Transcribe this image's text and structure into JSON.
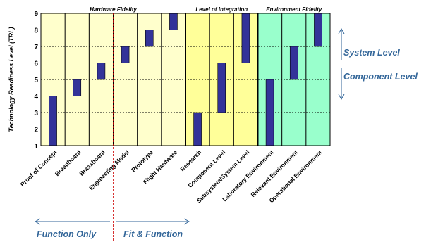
{
  "chart_data": {
    "type": "bar",
    "ylabel": "Technology Readiness Level (TRL)",
    "ylim": [
      1,
      9
    ],
    "yticks": [
      1,
      2,
      3,
      4,
      5,
      6,
      7,
      8,
      9
    ],
    "categories": [
      "Proof of Concept",
      "Breadboard",
      "Brassboard",
      "Engineering Model",
      "Prototype",
      "Flight Hardware",
      "Research",
      "Component Level",
      "Subsystem/System Level",
      "Laboratory Environment",
      "Relevant Environment",
      "Operational Environment"
    ],
    "ranges": [
      [
        1,
        4
      ],
      [
        4,
        5
      ],
      [
        5,
        6
      ],
      [
        6,
        7
      ],
      [
        7,
        8
      ],
      [
        8,
        9
      ],
      [
        1,
        3
      ],
      [
        3,
        6
      ],
      [
        6,
        9
      ],
      [
        1,
        5
      ],
      [
        5,
        7
      ],
      [
        7,
        9
      ]
    ],
    "groups": [
      {
        "title": "Hardware Fidelity",
        "color": "#ffffcc"
      },
      {
        "title": "Level of Integration",
        "color": "#ffff99"
      },
      {
        "title": "Environment Fidelity",
        "color": "#99ffcc"
      }
    ],
    "bar_color": "#333399",
    "annotations": {
      "system_level": "System Level",
      "component_level": "Component Level",
      "function_only": "Function Only",
      "fit_function": "Fit & Function"
    },
    "annotation_color": "#336699",
    "divider_color": "#cc0000"
  }
}
